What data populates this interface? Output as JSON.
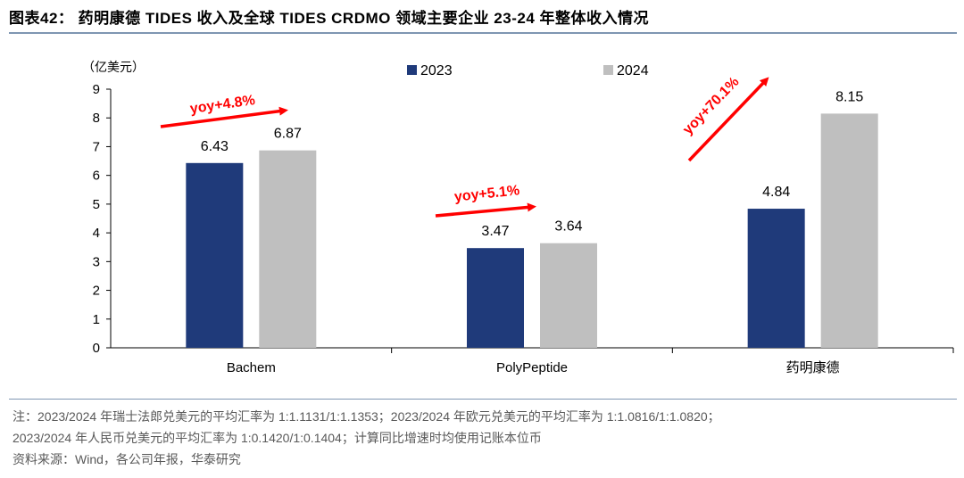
{
  "header": {
    "title": "图表42：  药明康德 TIDES 收入及全球 TIDES CRDMO 领域主要企业 23-24 年整体收入情况"
  },
  "colors": {
    "series_2023": "#1f3a7a",
    "series_2024": "#bfbfbf",
    "annotation": "#ff0000",
    "rule": "#7f96b2"
  },
  "chart_data": {
    "type": "bar",
    "title": "",
    "ylabel": "（亿美元）",
    "xlabel": "",
    "ylim": [
      0,
      9
    ],
    "yticks": [
      "0",
      "1",
      "2",
      "3",
      "4",
      "5",
      "6",
      "7",
      "8",
      "9"
    ],
    "categories": [
      "Bachem",
      "PolyPeptide",
      "药明康德"
    ],
    "series": [
      {
        "name": "2023",
        "values": [
          6.43,
          3.47,
          4.84
        ],
        "labels": [
          "6.43",
          "3.47",
          "4.84"
        ]
      },
      {
        "name": "2024",
        "values": [
          6.87,
          3.64,
          8.15
        ],
        "labels": [
          "6.87",
          "3.64",
          "8.15"
        ]
      }
    ],
    "annotations": [
      "yoy+4.8%",
      "yoy+5.1%",
      "yoy+70.1%"
    ],
    "legend": "top-center",
    "grid": false
  },
  "notes": {
    "line1": "注：2023/2024 年瑞士法郎兑美元的平均汇率为 1:1.1131/1:1.1353；2023/2024 年欧元兑美元的平均汇率为 1:1.0816/1:1.0820；",
    "line2": "2023/2024 年人民币兑美元的平均汇率为 1:0.1420/1:0.1404；计算同比增速时均使用记账本位币",
    "source": "资料来源：Wind，各公司年报，华泰研究"
  }
}
